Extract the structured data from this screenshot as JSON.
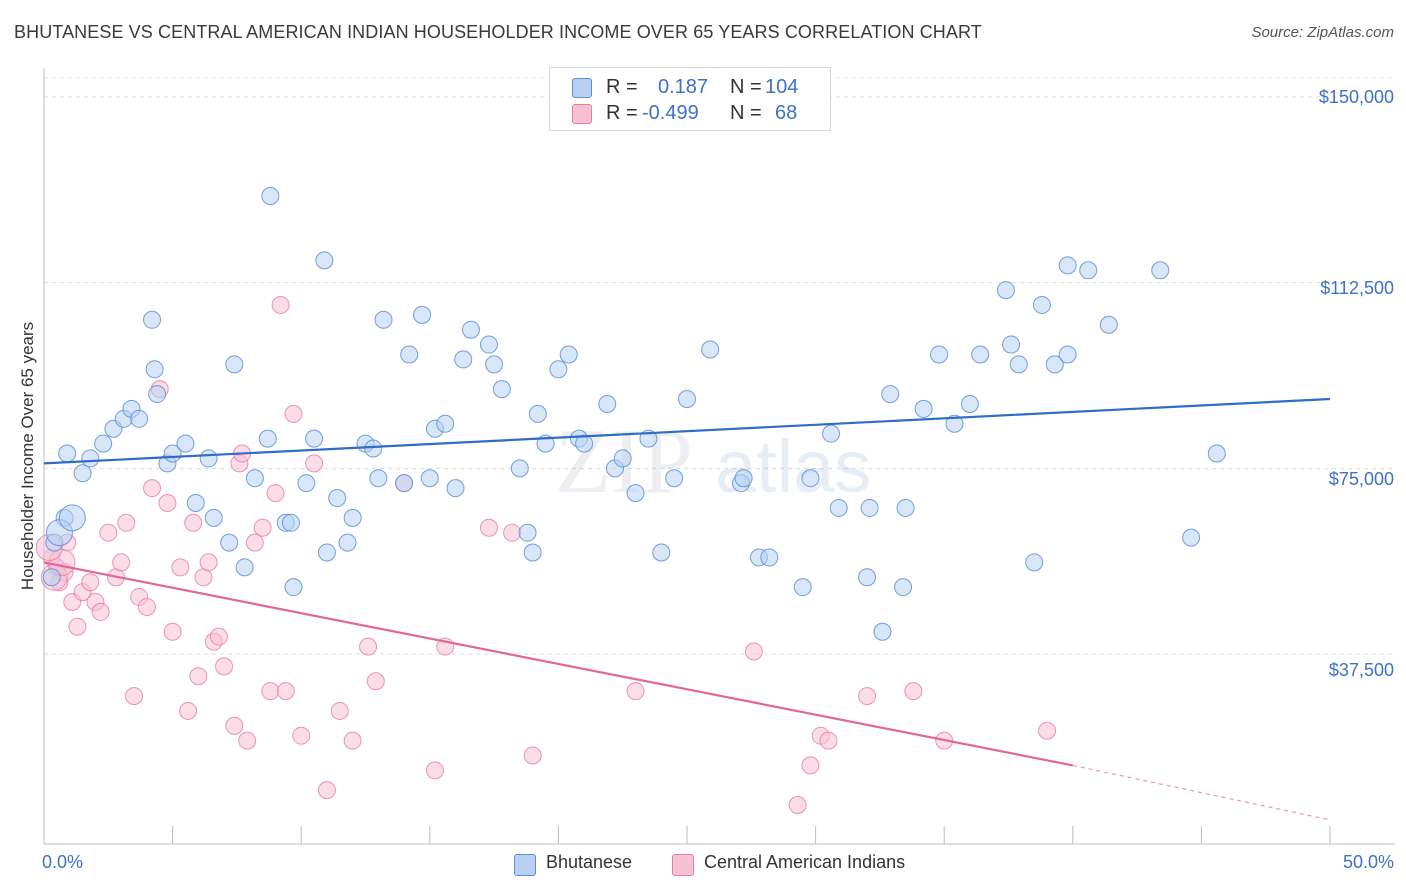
{
  "header": {
    "title": "BHUTANESE VS CENTRAL AMERICAN INDIAN HOUSEHOLDER INCOME OVER 65 YEARS CORRELATION CHART",
    "source": "Source: ZipAtlas.com"
  },
  "legend": {
    "row1": {
      "r_label": "R =",
      "r_value": "0.187",
      "n_label": "N =",
      "n_value": "104"
    },
    "row2": {
      "r_label": "R =",
      "r_value": "-0.499",
      "n_label": "N =",
      "n_value": "68"
    }
  },
  "bottom_legend": {
    "series1": "Bhutanese",
    "series2": "Central American Indians"
  },
  "colors": {
    "blue": "#5b8fd6",
    "blue_fill": "#b8d1f3",
    "pink": "#e87ca1",
    "pink_fill": "#f6c1d3",
    "blue_line": "#2e6cc8",
    "pink_line": "#e0679a"
  },
  "chart_data": {
    "type": "scatter",
    "title": "BHUTANESE VS CENTRAL AMERICAN INDIAN HOUSEHOLDER INCOME OVER 65 YEARS CORRELATION CHART",
    "xlabel": "",
    "ylabel": "Householder Income Over 65 years",
    "xlim": [
      0,
      50
    ],
    "ylim": [
      0,
      155000
    ],
    "x_tick_labels": [
      "0.0%",
      "50.0%"
    ],
    "y_ticks": [
      37500,
      75000,
      112500,
      150000
    ],
    "y_tick_labels": [
      "$37,500",
      "$75,000",
      "$112,500",
      "$150,000"
    ],
    "grid": true,
    "legend_placement": "top-center",
    "series": [
      {
        "name": "Bhutanese",
        "r": 0.187,
        "n": 104,
        "trend": [
          [
            0,
            76000
          ],
          [
            50,
            89000
          ]
        ],
        "points": [
          [
            0.4,
            60000
          ],
          [
            0.3,
            53000
          ],
          [
            0.8,
            65000
          ],
          [
            0.9,
            78000
          ],
          [
            1.5,
            74000
          ],
          [
            1.8,
            77000
          ],
          [
            2.3,
            80000
          ],
          [
            2.7,
            83000
          ],
          [
            3.1,
            85000
          ],
          [
            3.4,
            87000
          ],
          [
            3.7,
            85000
          ],
          [
            4.2,
            105000
          ],
          [
            4.3,
            95000
          ],
          [
            4.4,
            90000
          ],
          [
            4.8,
            76000
          ],
          [
            5.0,
            78000
          ],
          [
            5.5,
            80000
          ],
          [
            5.9,
            68000
          ],
          [
            6.4,
            77000
          ],
          [
            6.6,
            65000
          ],
          [
            7.2,
            60000
          ],
          [
            7.4,
            96000
          ],
          [
            7.8,
            55000
          ],
          [
            8.2,
            73000
          ],
          [
            8.7,
            81000
          ],
          [
            8.8,
            130000
          ],
          [
            9.4,
            64000
          ],
          [
            9.6,
            64000
          ],
          [
            9.7,
            51000
          ],
          [
            10.2,
            72000
          ],
          [
            10.5,
            81000
          ],
          [
            10.9,
            117000
          ],
          [
            11.0,
            58000
          ],
          [
            11.4,
            69000
          ],
          [
            11.8,
            60000
          ],
          [
            12.0,
            65000
          ],
          [
            12.5,
            80000
          ],
          [
            12.8,
            79000
          ],
          [
            13.0,
            73000
          ],
          [
            13.2,
            105000
          ],
          [
            14.0,
            72000
          ],
          [
            14.2,
            98000
          ],
          [
            14.7,
            106000
          ],
          [
            15.0,
            73000
          ],
          [
            15.2,
            83000
          ],
          [
            15.6,
            84000
          ],
          [
            16.0,
            71000
          ],
          [
            16.3,
            97000
          ],
          [
            16.6,
            103000
          ],
          [
            17.3,
            100000
          ],
          [
            17.5,
            96000
          ],
          [
            17.8,
            91000
          ],
          [
            18.5,
            75000
          ],
          [
            18.8,
            62000
          ],
          [
            19.0,
            58000
          ],
          [
            19.2,
            86000
          ],
          [
            19.5,
            80000
          ],
          [
            20.0,
            95000
          ],
          [
            20.4,
            98000
          ],
          [
            20.8,
            81000
          ],
          [
            21.0,
            80000
          ],
          [
            21.9,
            88000
          ],
          [
            22.2,
            75000
          ],
          [
            22.5,
            77000
          ],
          [
            23.0,
            70000
          ],
          [
            23.5,
            81000
          ],
          [
            24.0,
            58000
          ],
          [
            24.5,
            73000
          ],
          [
            25.0,
            89000
          ],
          [
            25.9,
            99000
          ],
          [
            27.1,
            72000
          ],
          [
            27.2,
            73000
          ],
          [
            27.8,
            57000
          ],
          [
            28.2,
            57000
          ],
          [
            29.5,
            51000
          ],
          [
            29.8,
            73000
          ],
          [
            30.6,
            82000
          ],
          [
            30.9,
            67000
          ],
          [
            32.0,
            53000
          ],
          [
            32.1,
            67000
          ],
          [
            32.6,
            42000
          ],
          [
            32.9,
            90000
          ],
          [
            33.4,
            51000
          ],
          [
            33.5,
            67000
          ],
          [
            34.2,
            87000
          ],
          [
            34.8,
            98000
          ],
          [
            35.4,
            84000
          ],
          [
            36.0,
            88000
          ],
          [
            36.4,
            98000
          ],
          [
            37.4,
            111000
          ],
          [
            37.6,
            100000
          ],
          [
            37.9,
            96000
          ],
          [
            38.5,
            56000
          ],
          [
            38.8,
            108000
          ],
          [
            39.3,
            96000
          ],
          [
            39.8,
            98000
          ],
          [
            39.8,
            116000
          ],
          [
            40.6,
            115000
          ],
          [
            41.4,
            104000
          ],
          [
            43.4,
            115000
          ],
          [
            44.6,
            61000
          ],
          [
            45.6,
            78000
          ],
          [
            0.6,
            62000
          ],
          [
            1.1,
            65000
          ]
        ]
      },
      {
        "name": "Central American Indians",
        "r": -0.499,
        "n": 68,
        "trend": [
          [
            0,
            56000
          ],
          [
            40,
            15000
          ]
        ],
        "trend_dashed": [
          [
            40,
            15000
          ],
          [
            50,
            4000
          ]
        ],
        "points": [
          [
            0.3,
            57000
          ],
          [
            0.5,
            55000
          ],
          [
            0.6,
            52000
          ],
          [
            0.8,
            54000
          ],
          [
            0.9,
            60000
          ],
          [
            1.1,
            48000
          ],
          [
            1.3,
            43000
          ],
          [
            1.5,
            50000
          ],
          [
            1.8,
            52000
          ],
          [
            2.0,
            48000
          ],
          [
            2.2,
            46000
          ],
          [
            2.5,
            62000
          ],
          [
            2.8,
            53000
          ],
          [
            3.0,
            56000
          ],
          [
            3.2,
            64000
          ],
          [
            3.5,
            29000
          ],
          [
            3.7,
            49000
          ],
          [
            4.0,
            47000
          ],
          [
            4.2,
            71000
          ],
          [
            4.5,
            91000
          ],
          [
            4.8,
            68000
          ],
          [
            5.0,
            42000
          ],
          [
            5.3,
            55000
          ],
          [
            5.6,
            26000
          ],
          [
            5.8,
            64000
          ],
          [
            6.0,
            33000
          ],
          [
            6.2,
            53000
          ],
          [
            6.4,
            56000
          ],
          [
            6.6,
            40000
          ],
          [
            6.8,
            41000
          ],
          [
            7.0,
            35000
          ],
          [
            7.4,
            23000
          ],
          [
            7.6,
            76000
          ],
          [
            7.7,
            78000
          ],
          [
            7.9,
            20000
          ],
          [
            8.2,
            60000
          ],
          [
            8.5,
            63000
          ],
          [
            8.8,
            30000
          ],
          [
            9.0,
            70000
          ],
          [
            9.2,
            108000
          ],
          [
            9.4,
            30000
          ],
          [
            9.7,
            86000
          ],
          [
            10.0,
            21000
          ],
          [
            10.5,
            76000
          ],
          [
            11.0,
            10000
          ],
          [
            11.5,
            26000
          ],
          [
            12.0,
            20000
          ],
          [
            12.6,
            39000
          ],
          [
            12.9,
            32000
          ],
          [
            14.0,
            72000
          ],
          [
            15.2,
            14000
          ],
          [
            15.6,
            39000
          ],
          [
            17.3,
            63000
          ],
          [
            18.2,
            62000
          ],
          [
            19.0,
            17000
          ],
          [
            23.0,
            30000
          ],
          [
            27.6,
            38000
          ],
          [
            29.3,
            7000
          ],
          [
            29.8,
            15000
          ],
          [
            30.2,
            21000
          ],
          [
            30.5,
            20000
          ],
          [
            32.0,
            29000
          ],
          [
            33.8,
            30000
          ],
          [
            35.0,
            20000
          ],
          [
            39.0,
            22000
          ],
          [
            0.4,
            53000
          ],
          [
            0.7,
            56000
          ],
          [
            0.2,
            59000
          ]
        ]
      }
    ]
  }
}
